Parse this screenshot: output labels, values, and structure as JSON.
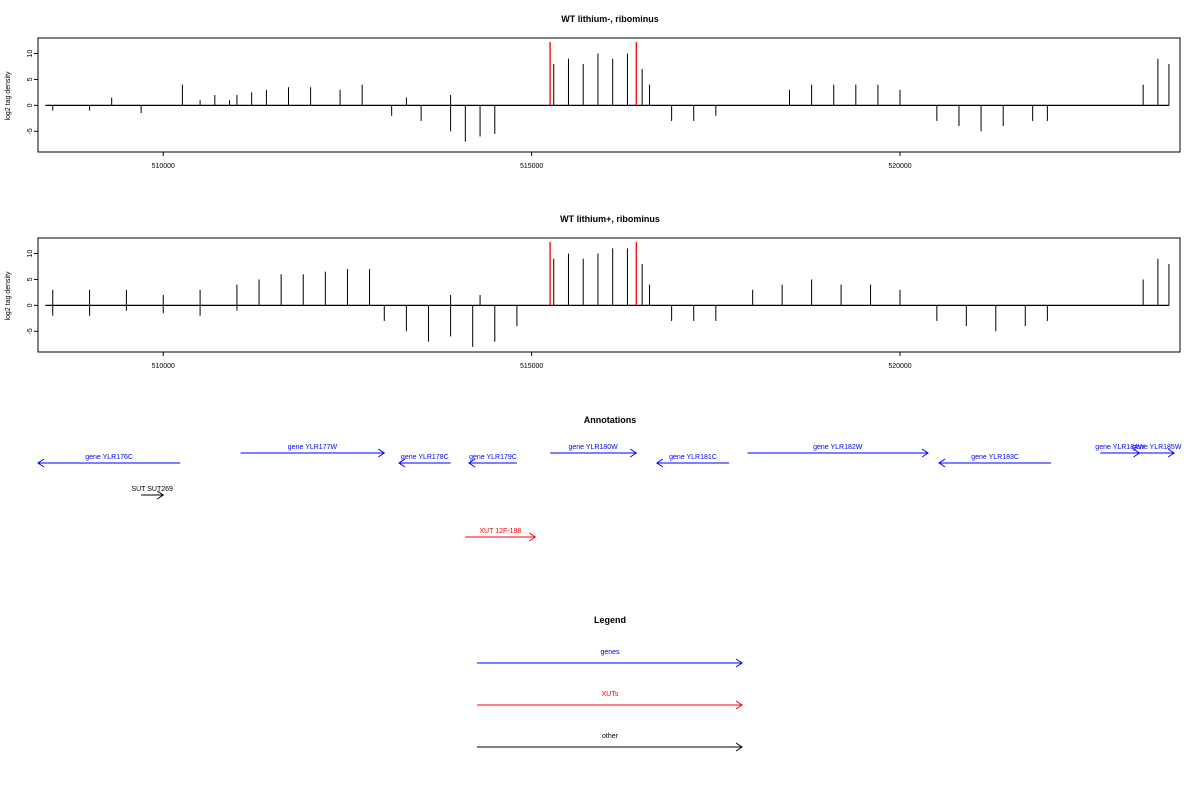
{
  "chart_data": [
    {
      "type": "bar",
      "title": "WT lithium-, ribominus",
      "xlabel": "",
      "ylabel": "log2 tag density",
      "xlim": [
        508300,
        523800
      ],
      "ylim": [
        -9,
        13
      ],
      "x_ticks": [
        510000,
        515000,
        520000
      ],
      "x_tick_labels": [
        "510000",
        "515000",
        "520000"
      ],
      "y_ticks": [
        -5,
        0,
        5,
        10
      ],
      "y_tick_labels": [
        "-5",
        "0",
        "5",
        "10"
      ],
      "markers_x": [
        515250,
        516420
      ],
      "series": [
        {
          "direction": "plus",
          "values": [
            {
              "x": 509300,
              "y": 1.5
            },
            {
              "x": 510260,
              "y": 4
            },
            {
              "x": 510500,
              "y": 1
            },
            {
              "x": 510700,
              "y": 2
            },
            {
              "x": 510900,
              "y": 1
            },
            {
              "x": 511000,
              "y": 2
            },
            {
              "x": 511200,
              "y": 2.5
            },
            {
              "x": 511400,
              "y": 3
            },
            {
              "x": 511700,
              "y": 3.5
            },
            {
              "x": 512000,
              "y": 3.5
            },
            {
              "x": 512400,
              "y": 3
            },
            {
              "x": 512700,
              "y": 4
            },
            {
              "x": 513300,
              "y": 1.5
            },
            {
              "x": 513900,
              "y": 2
            },
            {
              "x": 515300,
              "y": 8
            },
            {
              "x": 515500,
              "y": 9
            },
            {
              "x": 515700,
              "y": 8
            },
            {
              "x": 515900,
              "y": 10
            },
            {
              "x": 516100,
              "y": 9
            },
            {
              "x": 516300,
              "y": 10
            },
            {
              "x": 516500,
              "y": 7
            },
            {
              "x": 516600,
              "y": 4
            },
            {
              "x": 518500,
              "y": 3
            },
            {
              "x": 518800,
              "y": 4
            },
            {
              "x": 519100,
              "y": 4
            },
            {
              "x": 519400,
              "y": 4
            },
            {
              "x": 519700,
              "y": 4
            },
            {
              "x": 520000,
              "y": 3
            },
            {
              "x": 523300,
              "y": 4
            },
            {
              "x": 523500,
              "y": 9
            },
            {
              "x": 523650,
              "y": 8
            }
          ]
        },
        {
          "direction": "minus",
          "values": [
            {
              "x": 508500,
              "y": -1
            },
            {
              "x": 509000,
              "y": -1
            },
            {
              "x": 509700,
              "y": -1.5
            },
            {
              "x": 513100,
              "y": -2
            },
            {
              "x": 513500,
              "y": -3
            },
            {
              "x": 513900,
              "y": -5
            },
            {
              "x": 514100,
              "y": -7
            },
            {
              "x": 514300,
              "y": -6
            },
            {
              "x": 514500,
              "y": -5.5
            },
            {
              "x": 516900,
              "y": -3
            },
            {
              "x": 517200,
              "y": -3
            },
            {
              "x": 517500,
              "y": -2
            },
            {
              "x": 520500,
              "y": -3
            },
            {
              "x": 520800,
              "y": -4
            },
            {
              "x": 521100,
              "y": -5
            },
            {
              "x": 521400,
              "y": -4
            },
            {
              "x": 521800,
              "y": -3
            },
            {
              "x": 522000,
              "y": -3
            }
          ]
        }
      ]
    },
    {
      "type": "bar",
      "title": "WT lithium+, ribominus",
      "xlabel": "",
      "ylabel": "log2 tag density",
      "xlim": [
        508300,
        523800
      ],
      "ylim": [
        -9,
        13
      ],
      "x_ticks": [
        510000,
        515000,
        520000
      ],
      "x_tick_labels": [
        "510000",
        "515000",
        "520000"
      ],
      "y_ticks": [
        -5,
        0,
        5,
        10
      ],
      "y_tick_labels": [
        "-5",
        "0",
        "5",
        "10"
      ],
      "markers_x": [
        515250,
        516420
      ],
      "series": [
        {
          "direction": "plus",
          "values": [
            {
              "x": 508500,
              "y": 3
            },
            {
              "x": 509000,
              "y": 3
            },
            {
              "x": 509500,
              "y": 3
            },
            {
              "x": 510000,
              "y": 2
            },
            {
              "x": 510500,
              "y": 3
            },
            {
              "x": 511000,
              "y": 4
            },
            {
              "x": 511300,
              "y": 5
            },
            {
              "x": 511600,
              "y": 6
            },
            {
              "x": 511900,
              "y": 6
            },
            {
              "x": 512200,
              "y": 6.5
            },
            {
              "x": 512500,
              "y": 7
            },
            {
              "x": 512800,
              "y": 7
            },
            {
              "x": 513900,
              "y": 2
            },
            {
              "x": 514300,
              "y": 2
            },
            {
              "x": 515300,
              "y": 9
            },
            {
              "x": 515500,
              "y": 10
            },
            {
              "x": 515700,
              "y": 9
            },
            {
              "x": 515900,
              "y": 10
            },
            {
              "x": 516100,
              "y": 11
            },
            {
              "x": 516300,
              "y": 11
            },
            {
              "x": 516500,
              "y": 8
            },
            {
              "x": 516600,
              "y": 4
            },
            {
              "x": 518000,
              "y": 3
            },
            {
              "x": 518400,
              "y": 4
            },
            {
              "x": 518800,
              "y": 5
            },
            {
              "x": 519200,
              "y": 4
            },
            {
              "x": 519600,
              "y": 4
            },
            {
              "x": 520000,
              "y": 3
            },
            {
              "x": 523300,
              "y": 5
            },
            {
              "x": 523500,
              "y": 9
            },
            {
              "x": 523650,
              "y": 8
            }
          ]
        },
        {
          "direction": "minus",
          "values": [
            {
              "x": 508500,
              "y": -2
            },
            {
              "x": 509000,
              "y": -2
            },
            {
              "x": 509500,
              "y": -1
            },
            {
              "x": 510000,
              "y": -1.5
            },
            {
              "x": 510500,
              "y": -2
            },
            {
              "x": 511000,
              "y": -1
            },
            {
              "x": 513000,
              "y": -3
            },
            {
              "x": 513300,
              "y": -5
            },
            {
              "x": 513600,
              "y": -7
            },
            {
              "x": 513900,
              "y": -6
            },
            {
              "x": 514200,
              "y": -8
            },
            {
              "x": 514500,
              "y": -7
            },
            {
              "x": 514800,
              "y": -4
            },
            {
              "x": 516900,
              "y": -3
            },
            {
              "x": 517200,
              "y": -3
            },
            {
              "x": 517500,
              "y": -3
            },
            {
              "x": 520500,
              "y": -3
            },
            {
              "x": 520900,
              "y": -4
            },
            {
              "x": 521300,
              "y": -5
            },
            {
              "x": 521700,
              "y": -4
            },
            {
              "x": 522000,
              "y": -3
            }
          ]
        }
      ]
    }
  ],
  "annotations": {
    "title": "Annotations",
    "features": [
      {
        "label": "gene YLR176C",
        "kind": "gene",
        "strand": "-",
        "start": 508300,
        "end": 510230,
        "row": 1
      },
      {
        "label": "gene YLR177W",
        "kind": "gene",
        "strand": "+",
        "start": 511050,
        "end": 513000,
        "row": 0
      },
      {
        "label": "gene YLR178C",
        "kind": "gene",
        "strand": "-",
        "start": 513200,
        "end": 513900,
        "row": 1
      },
      {
        "label": "gene YLR179C",
        "kind": "gene",
        "strand": "-",
        "start": 514150,
        "end": 514800,
        "row": 1
      },
      {
        "label": "gene YLR180W",
        "kind": "gene",
        "strand": "+",
        "start": 515250,
        "end": 516420,
        "row": 0
      },
      {
        "label": "gene YLR181C",
        "kind": "gene",
        "strand": "-",
        "start": 516700,
        "end": 517680,
        "row": 1
      },
      {
        "label": "gene YLR182W",
        "kind": "gene",
        "strand": "+",
        "start": 517930,
        "end": 520380,
        "row": 0
      },
      {
        "label": "gene YLR183C",
        "kind": "gene",
        "strand": "-",
        "start": 520530,
        "end": 522050,
        "row": 1
      },
      {
        "label": "gene YLR184W",
        "kind": "gene",
        "strand": "+",
        "start": 522720,
        "end": 523250,
        "row": 0
      },
      {
        "label": "gene YLR185W",
        "kind": "gene",
        "strand": "+",
        "start": 523250,
        "end": 523720,
        "row": 0
      },
      {
        "label": "SUT SUT269",
        "kind": "other",
        "strand": "+",
        "start": 509700,
        "end": 510000,
        "row": 2
      },
      {
        "label": "XUT 12F-198",
        "kind": "xut",
        "strand": "+",
        "start": 514100,
        "end": 515050,
        "row": 3
      }
    ]
  },
  "legend": {
    "title": "Legend",
    "items": [
      {
        "label": "genes",
        "color": "#0000ff"
      },
      {
        "label": "XUTs",
        "color": "#ff0000"
      },
      {
        "label": "other",
        "color": "#000000"
      }
    ]
  },
  "colors": {
    "gene": "#0000ff",
    "xut": "#ff0000",
    "other": "#000000",
    "marker": "#ff0000",
    "signal": "#000000"
  }
}
